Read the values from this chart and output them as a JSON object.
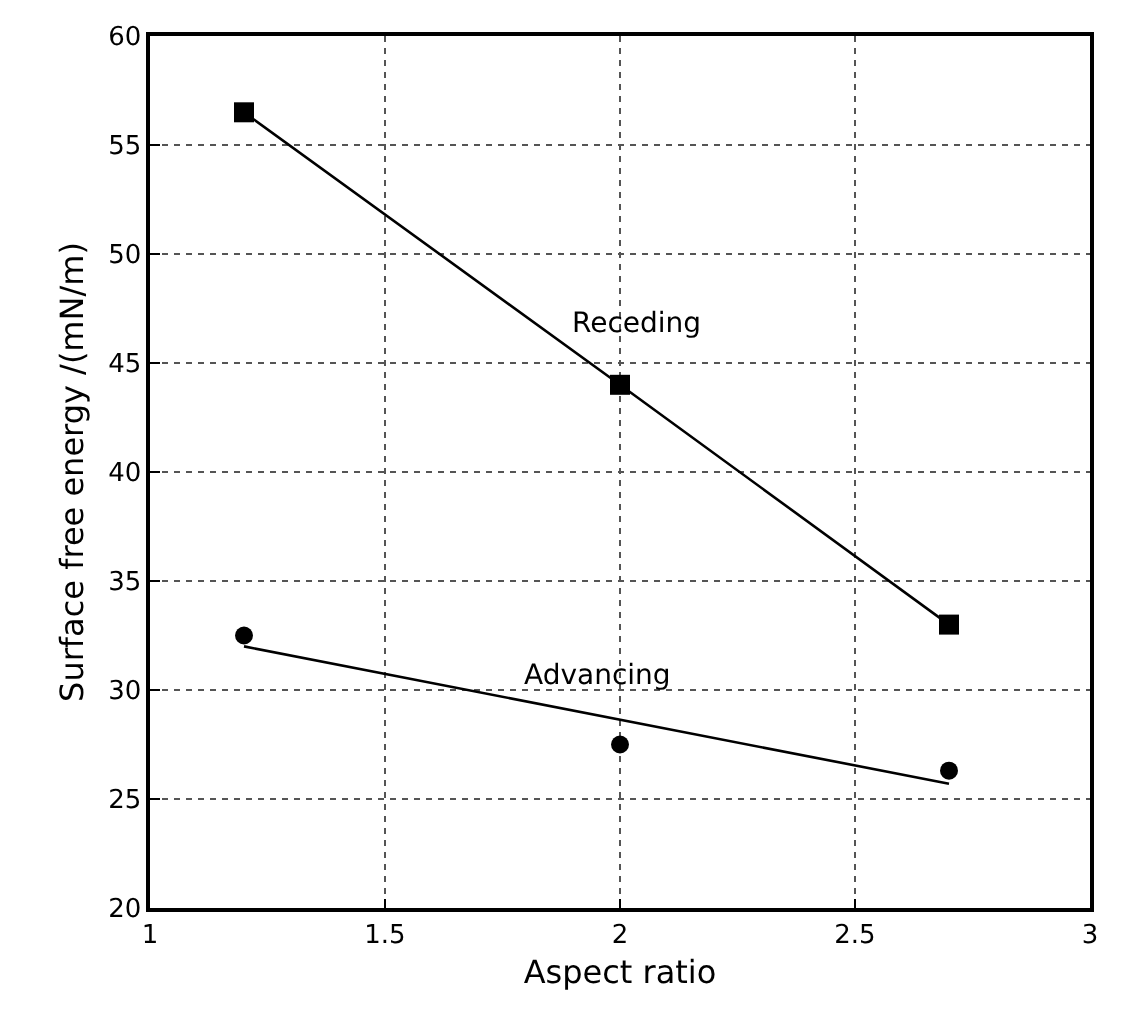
{
  "chart_data": {
    "type": "line",
    "xlabel": "Aspect ratio",
    "ylabel": "Surface free energy /(mN/m)",
    "xlim": [
      1,
      3
    ],
    "xticks": [
      1,
      1.5,
      2,
      2.5,
      3
    ],
    "ylim": [
      20,
      60
    ],
    "yticks": [
      20,
      25,
      30,
      35,
      40,
      45,
      50,
      55,
      60
    ],
    "grid": true,
    "legend": false,
    "series": [
      {
        "name": "Receding",
        "marker": "square",
        "color": "#000000",
        "x": [
          1.2,
          2.0,
          2.7
        ],
        "values": [
          56.5,
          44.0,
          33.0
        ]
      },
      {
        "name": "Advancing",
        "type": "scatter",
        "marker": "circle",
        "color": "#000000",
        "x": [
          1.2,
          2.0,
          2.7
        ],
        "values": [
          32.5,
          27.5,
          26.3
        ]
      },
      {
        "marker": "none",
        "color": "#000000",
        "x": [
          1.2,
          2.7
        ],
        "values": [
          32.0,
          25.7
        ]
      }
    ]
  }
}
